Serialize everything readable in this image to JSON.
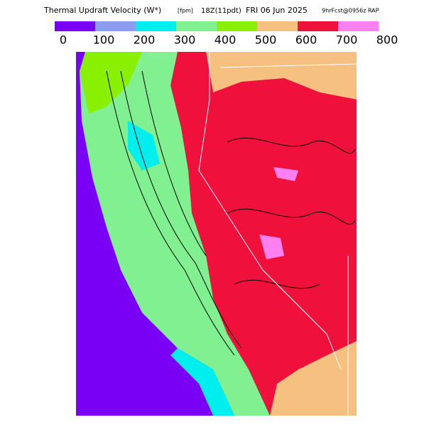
{
  "header": {
    "title_parts": [
      "Thermal Updraft Velocity (W*)",
      "[fpm]",
      "18Z(11pdt)",
      "FRI 06 Jun 2025",
      "9hrFcst@0956z RAP"
    ]
  },
  "colorbar": {
    "ticks": [
      0,
      100,
      200,
      300,
      400,
      500,
      600,
      700,
      800
    ],
    "colors": [
      "#7a00f5",
      "#8c9cf0",
      "#00eeee",
      "#80f090",
      "#88f000",
      "#f5c080",
      "#f0103c",
      "#ff80f0"
    ]
  }
}
